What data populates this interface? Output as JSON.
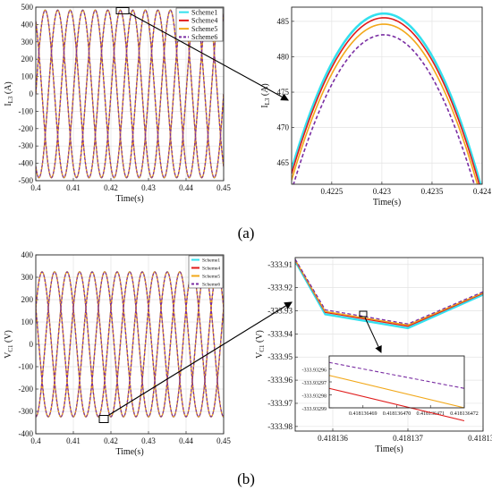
{
  "figure": {
    "label_a": "(a)",
    "label_b": "(b)"
  },
  "chart_data": [
    {
      "id": "a_main",
      "type": "line",
      "xlabel": "Time(s)",
      "ylabel": "I_L3 (A)",
      "xlim": [
        0.4,
        0.45
      ],
      "ylim": [
        -500,
        500
      ],
      "xticks": [
        "0.4",
        "0.41",
        "0.42",
        "0.43",
        "0.44",
        "0.45"
      ],
      "yticks": [
        "-500",
        "-400",
        "-300",
        "-200",
        "-100",
        "0",
        "100",
        "200",
        "300",
        "400",
        "500"
      ],
      "grid": true,
      "legend_placement": "top-right",
      "signal": {
        "frequency_hz": 100,
        "amplitude": 484,
        "phases_deg": [
          0,
          -120,
          120
        ]
      },
      "series": [
        {
          "name": "Scheme1",
          "color": "#33e0ee",
          "style": "solid"
        },
        {
          "name": "Scheme4",
          "color": "#e01b1b",
          "style": "solid"
        },
        {
          "name": "Scheme5",
          "color": "#f2a81a",
          "style": "solid"
        },
        {
          "name": "Scheme6",
          "color": "#7a2ea3",
          "style": "dashed"
        }
      ]
    },
    {
      "id": "a_zoom",
      "type": "line",
      "xlabel": "Time(s)",
      "ylabel": "I_L3 (A)",
      "xlim": [
        0.4221,
        0.424
      ],
      "ylim": [
        462,
        487
      ],
      "xticks": [
        "0.4225",
        "0.423",
        "0.4235",
        "0.424"
      ],
      "yticks": [
        "465",
        "470",
        "475",
        "480",
        "485"
      ],
      "grid": true,
      "series": [
        {
          "name": "Scheme1",
          "color": "#33e0ee",
          "peak_x": 0.42302,
          "peak_y": 486.1
        },
        {
          "name": "Scheme4",
          "color": "#e01b1b",
          "peak_x": 0.42302,
          "peak_y": 485.5
        },
        {
          "name": "Scheme5",
          "color": "#f2a81a",
          "peak_x": 0.42302,
          "peak_y": 484.6
        },
        {
          "name": "Scheme6",
          "color": "#7a2ea3",
          "peak_x": 0.42302,
          "peak_y": 483.1
        }
      ]
    },
    {
      "id": "b_main",
      "type": "line",
      "xlabel": "Time(s)",
      "ylabel": "V_C1 (V)",
      "xlim": [
        0.4,
        0.45
      ],
      "ylim": [
        -400,
        400
      ],
      "xticks": [
        "0.4",
        "0.41",
        "0.42",
        "0.43",
        "0.44",
        "0.45"
      ],
      "yticks": [
        "-400",
        "-300",
        "-200",
        "-100",
        "0",
        "100",
        "200",
        "300",
        "400"
      ],
      "grid": true,
      "legend_placement": "top-right",
      "signal": {
        "frequency_hz": 100,
        "amplitude": 325,
        "phases_deg": [
          30,
          -90,
          150
        ]
      },
      "series": [
        {
          "name": "Scheme1",
          "color": "#33e0ee",
          "style": "solid"
        },
        {
          "name": "Scheme4",
          "color": "#e01b1b",
          "style": "solid"
        },
        {
          "name": "Scheme5",
          "color": "#f2a81a",
          "style": "solid"
        },
        {
          "name": "Scheme6",
          "color": "#7a2ea3",
          "style": "dashed"
        }
      ]
    },
    {
      "id": "b_zoom",
      "type": "line",
      "xlabel": "Time(s)",
      "ylabel": "V_C1 (V)",
      "xlim": [
        0.4181355,
        0.418138
      ],
      "ylim": [
        -333.982,
        -333.907
      ],
      "xticks": [
        "0.418136",
        "0.418137",
        "0.418138"
      ],
      "yticks": [
        "-333.91",
        "-333.92",
        "-333.93",
        "-333.94",
        "-333.95",
        "-333.96",
        "-333.97",
        "-333.98"
      ],
      "grid": true,
      "x": [
        0.4181355,
        0.4181359,
        0.418137,
        0.418138
      ],
      "series": [
        {
          "name": "Scheme1",
          "color": "#33e0ee",
          "values": [
            -333.9085,
            -333.9315,
            -333.9375,
            -333.923
          ]
        },
        {
          "name": "Scheme4",
          "color": "#e01b1b",
          "values": [
            -333.9082,
            -333.9307,
            -333.9367,
            -333.9225
          ]
        },
        {
          "name": "Scheme5",
          "color": "#f2a81a",
          "values": [
            -333.908,
            -333.9303,
            -333.9362,
            -333.9222
          ]
        },
        {
          "name": "Scheme6",
          "color": "#7a2ea3",
          "values": [
            -333.9077,
            -333.9296,
            -333.9357,
            -333.9218
          ]
        }
      ]
    },
    {
      "id": "b_inset",
      "type": "line",
      "xlim": [
        0.418136468,
        0.418136472
      ],
      "ylim": [
        -333.93299,
        -333.93295
      ],
      "xticks": [
        "0.418136469",
        "0.418136470",
        "0.418136471",
        "0.418136472"
      ],
      "yticks": [
        "-333.93296",
        "-333.93297",
        "-333.93298",
        "-333.93299"
      ],
      "series": [
        {
          "name": "Scheme6",
          "color": "#7a2ea3",
          "values": [
            -333.932955,
            -333.932975
          ]
        },
        {
          "name": "Scheme5",
          "color": "#f2a81a",
          "values": [
            -333.932965,
            -333.93299
          ]
        },
        {
          "name": "Scheme4",
          "color": "#e01b1b",
          "values": [
            -333.932975,
            -333.933
          ]
        }
      ]
    }
  ]
}
